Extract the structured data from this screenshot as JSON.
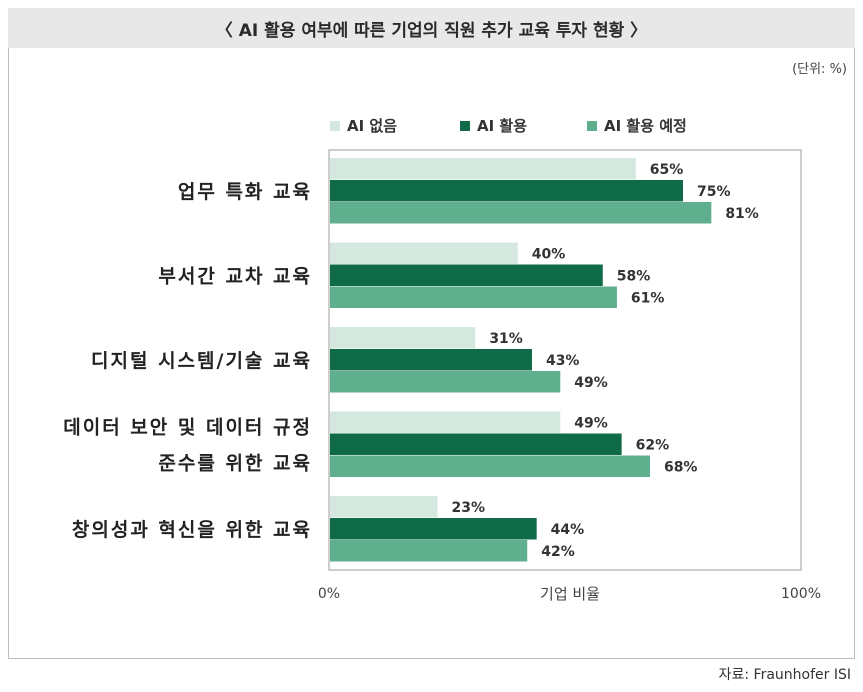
{
  "header": {
    "title": "〈 AI 활용 여부에 따른 기업의 직원 추가 교육 투자 현황 〉"
  },
  "unit_label": "(단위: %)",
  "source": "자료: Fraunhofer ISI",
  "chart_data": {
    "type": "bar",
    "orientation": "horizontal",
    "categories": [
      [
        "업무 특화 교육"
      ],
      [
        "부서간 교차 교육"
      ],
      [
        "디지털 시스템/기술 교육"
      ],
      [
        "데이터 보안 및 데이터 규정",
        "준수를 위한 교육"
      ],
      [
        "창의성과 혁신을 위한 교육"
      ]
    ],
    "series": [
      {
        "name": "AI 없음",
        "color": "#d5e8df",
        "values": [
          65,
          40,
          31,
          49,
          23
        ]
      },
      {
        "name": "AI 활용",
        "color": "#0f6b47",
        "values": [
          75,
          58,
          43,
          62,
          44
        ]
      },
      {
        "name": "AI 활용 예정",
        "color": "#5fae8e",
        "values": [
          81,
          61,
          49,
          68,
          42
        ]
      }
    ],
    "xlabel": "기업 비율",
    "xticks": [
      "0%",
      "100%"
    ],
    "xlim": [
      0,
      100
    ],
    "legend_position": "top-left",
    "grid": false
  }
}
